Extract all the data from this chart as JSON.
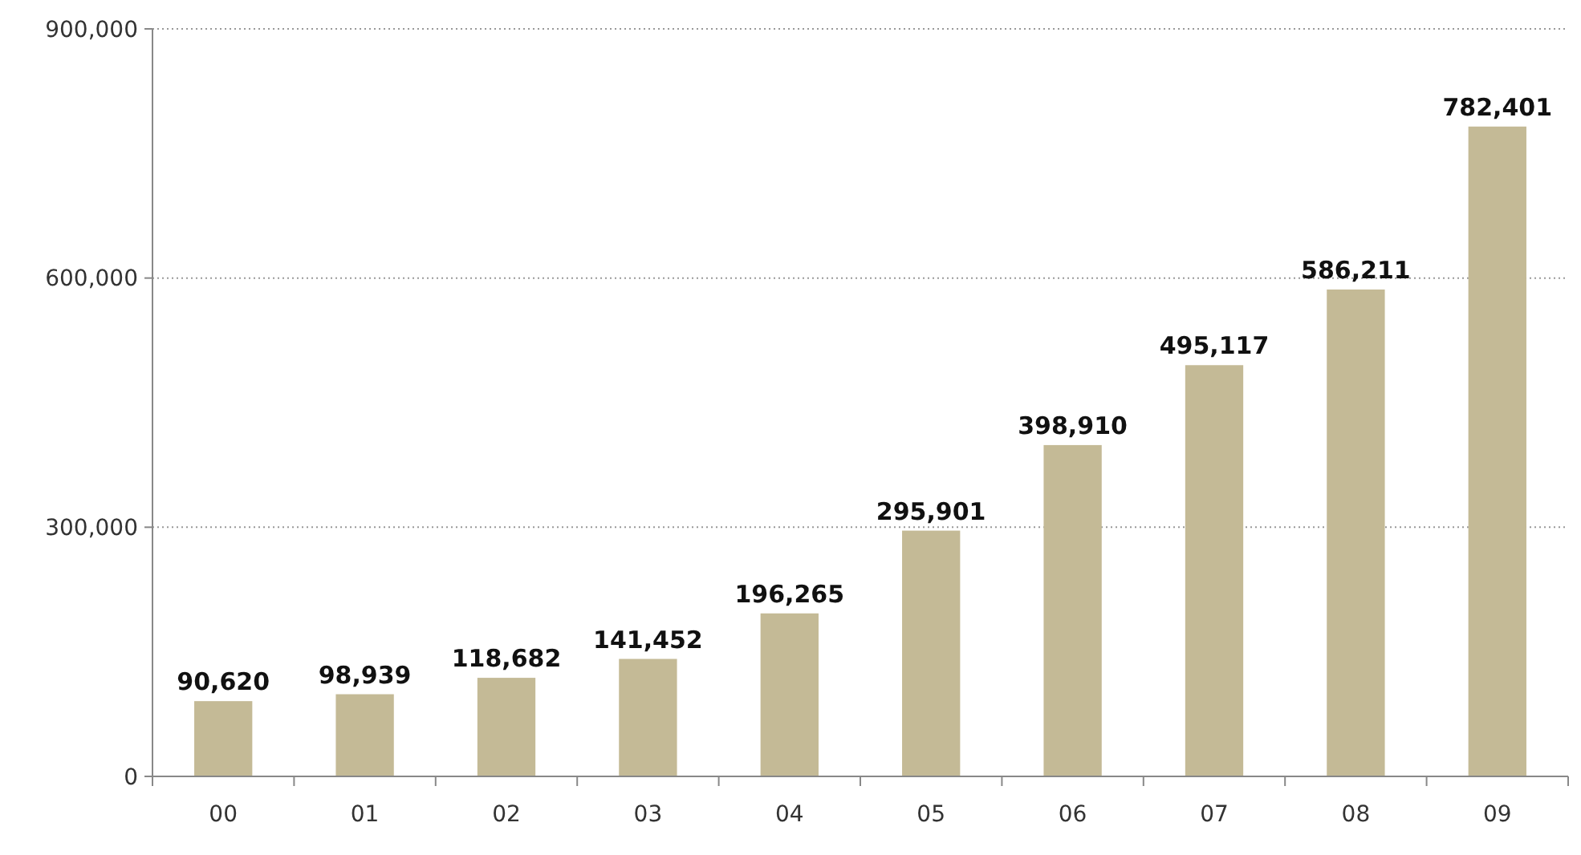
{
  "chart_data": {
    "type": "bar",
    "categories": [
      "00",
      "01",
      "02",
      "03",
      "04",
      "05",
      "06",
      "07",
      "08",
      "09"
    ],
    "values": [
      90620,
      98939,
      118682,
      141452,
      196265,
      295901,
      398910,
      495117,
      586211,
      782401
    ],
    "color": "#c4ba96",
    "ylim": [
      0,
      900000
    ],
    "yticks": [
      {
        "value": 0,
        "label": "0"
      },
      {
        "value": 300000,
        "label": "300,000"
      },
      {
        "value": 600000,
        "label": "600,000"
      },
      {
        "value": 900000,
        "label": "900,000"
      }
    ],
    "value_labels": [
      "90,620",
      "98,939",
      "118,682",
      "141,452",
      "196,265",
      "295,901",
      "398,910",
      "495,117",
      "586,211",
      "782,401"
    ],
    "grid": "y"
  }
}
